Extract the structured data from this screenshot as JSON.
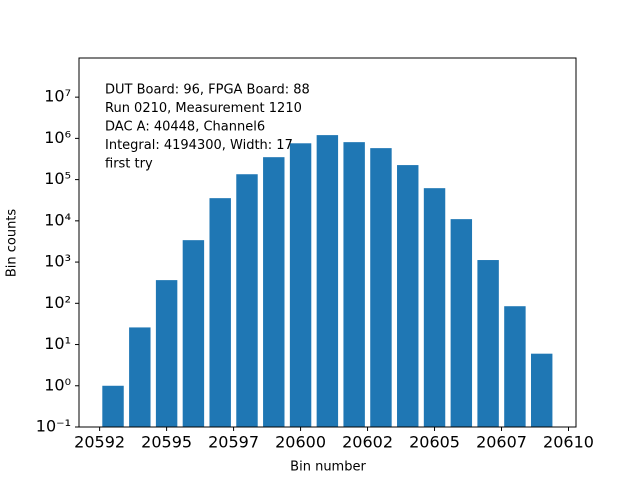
{
  "chart_data": {
    "type": "bar",
    "xlabel": "Bin number",
    "ylabel": "Bin counts",
    "annotation": [
      "DUT Board: 96, FPGA Board: 88",
      "Run 0210, Measurement 1210",
      "DAC A: 40448, Channel6",
      "Integral: 4194300, Width: 17",
      "first try"
    ],
    "x": [
      20593,
      20594,
      20595,
      20596,
      20597,
      20598,
      20599,
      20600,
      20601,
      20602,
      20603,
      20604,
      20605,
      20606,
      20607,
      20608,
      20609
    ],
    "values": [
      1,
      26,
      365,
      3400,
      35500,
      135000,
      350000,
      760000,
      1200000,
      810000,
      580000,
      225000,
      62000,
      11000,
      1120,
      85,
      6
    ],
    "color": "#1f77b4",
    "xlim": [
      20591.73,
      20610.28
    ],
    "xticks": [
      {
        "value": 20592.5,
        "label": "20592"
      },
      20595,
      {
        "value": 20597.5,
        "label": "20597"
      },
      20600,
      {
        "value": 20602.5,
        "label": "20602"
      },
      20605,
      {
        "value": 20607.5,
        "label": "20607"
      },
      20610
    ],
    "ylim": [
      0.1,
      89000000
    ],
    "ylog": true,
    "yticks": [
      {
        "value": 0.1,
        "label": "10⁻¹"
      },
      {
        "value": 1,
        "label": "10⁰"
      },
      {
        "value": 10,
        "label": "10¹"
      },
      {
        "value": 100,
        "label": "10²"
      },
      {
        "value": 1000,
        "label": "10³"
      },
      {
        "value": 10000,
        "label": "10⁴"
      },
      {
        "value": 100000,
        "label": "10⁵"
      },
      {
        "value": 1000000,
        "label": "10⁶"
      },
      {
        "value": 10000000,
        "label": "10⁷"
      }
    ]
  }
}
